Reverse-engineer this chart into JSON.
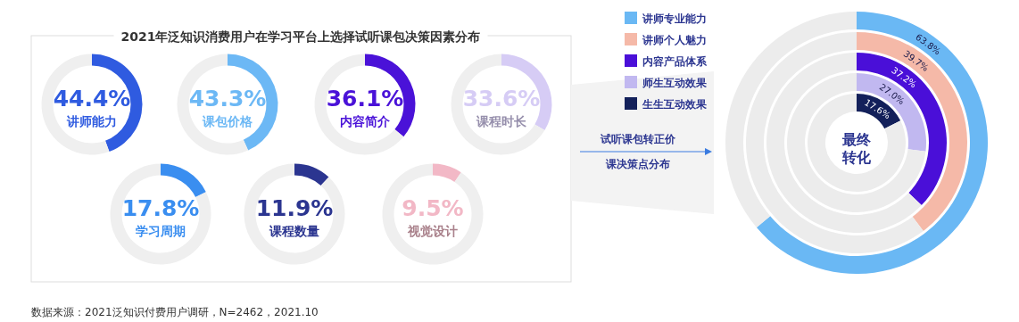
{
  "chart_data": [
    {
      "type": "donut",
      "title": "2021年泛知识消费用户在学习平台上选择试听课包决策因素分布",
      "categories": [
        "讲师能力",
        null
      ],
      "values": [
        44.4,
        55.6
      ],
      "colors": [
        "#2f5be0",
        "#efefef"
      ],
      "value_labels": [
        "44.4%",
        null
      ]
    },
    {
      "type": "donut",
      "categories": [
        "课包价格",
        null
      ],
      "values": [
        43.3,
        56.7
      ],
      "colors": [
        "#6cb8f5",
        "#efefef"
      ],
      "value_labels": [
        "43.3%",
        null
      ]
    },
    {
      "type": "donut",
      "categories": [
        "内容简介",
        null
      ],
      "values": [
        36.1,
        63.9
      ],
      "colors": [
        "#4a12d8",
        "#efefef"
      ],
      "value_labels": [
        "36.1%",
        null
      ]
    },
    {
      "type": "donut",
      "categories": [
        "课程时长",
        null
      ],
      "values": [
        33.6,
        66.4
      ],
      "colors": [
        "#d6ccf5",
        "#efefef"
      ],
      "value_labels": [
        "33.6%",
        null
      ]
    },
    {
      "type": "donut",
      "categories": [
        "学习周期",
        null
      ],
      "values": [
        17.8,
        82.2
      ],
      "colors": [
        "#3a8ef0",
        "#efefef"
      ],
      "value_labels": [
        "17.8%",
        null
      ]
    },
    {
      "type": "donut",
      "categories": [
        "课程数量",
        null
      ],
      "values": [
        11.9,
        88.1
      ],
      "colors": [
        "#2b3590",
        "#efefef"
      ],
      "value_labels": [
        "11.9%",
        null
      ]
    },
    {
      "type": "donut",
      "categories": [
        "视觉设计",
        null
      ],
      "values": [
        9.5,
        90.5
      ],
      "colors": [
        "#f2b8c6",
        "#efefef"
      ],
      "value_labels": [
        "9.5%",
        null
      ]
    },
    {
      "type": "donut",
      "categories": [
        "讲师专业能力",
        null
      ],
      "values": [
        63.8,
        36.2
      ],
      "colors": [
        "#6ab8f4",
        "#ececec"
      ],
      "value_labels": [
        "63.8%",
        null
      ],
      "annotations": [
        "试听课包转正价课决策点分布",
        "最终转化",
        "数据来源：2021泛知识付费用户调研，N=2462，2021.10"
      ]
    },
    {
      "type": "donut",
      "categories": [
        "讲师个人魅力",
        null
      ],
      "values": [
        39.7,
        60.3
      ],
      "colors": [
        "#f5b9a8",
        "#ececec"
      ],
      "value_labels": [
        "39.7%",
        null
      ]
    },
    {
      "type": "donut",
      "categories": [
        "内容产品体系",
        null
      ],
      "values": [
        37.2,
        62.8
      ],
      "colors": [
        "#4a0fd8",
        "#ececec"
      ],
      "value_labels": [
        "37.2%",
        null
      ]
    },
    {
      "type": "donut",
      "categories": [
        "师生互动效果",
        null
      ],
      "values": [
        27.0,
        73.0
      ],
      "colors": [
        "#c1b8f0",
        "#ececec"
      ],
      "value_labels": [
        "27.0%",
        null
      ]
    },
    {
      "type": "donut",
      "categories": [
        "生生互动效果",
        null
      ],
      "values": [
        17.6,
        82.4
      ],
      "colors": [
        "#13205a",
        "#ececec"
      ],
      "value_labels": [
        "17.6%",
        null
      ]
    }
  ]
}
